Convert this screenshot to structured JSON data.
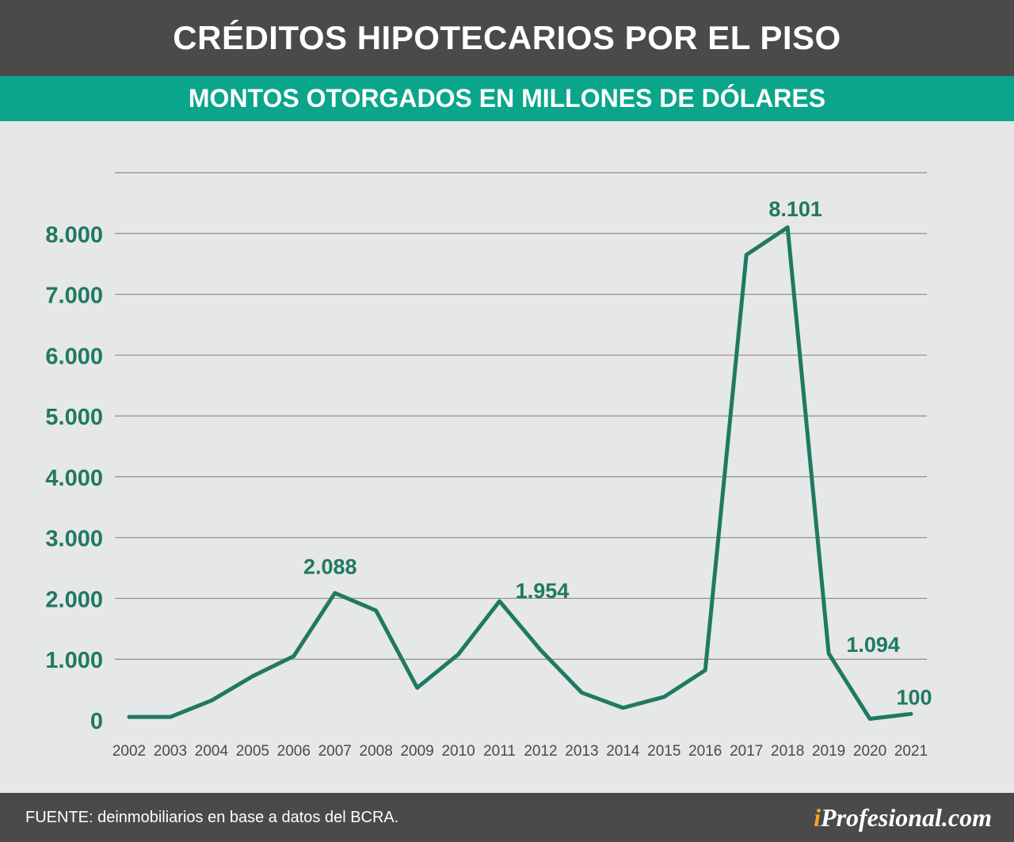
{
  "header": {
    "title": "CRÉDITOS HIPOTECARIOS POR EL PISO",
    "subtitle": "MONTOS OTORGADOS EN MILLONES DE DÓLARES"
  },
  "footer": {
    "source": "FUENTE: deinmobiliarios en base a datos del BCRA.",
    "brand_i": "i",
    "brand_rest": "Profesional.com"
  },
  "colors": {
    "line": "#1f7a5f",
    "axis_text": "#1f7a5f",
    "grid": "#8c8c8c",
    "header_bg": "#4a4a4a",
    "subheader_bg": "#0aa58a"
  },
  "chart_data": {
    "type": "line",
    "title": "CRÉDITOS HIPOTECARIOS POR EL PISO",
    "subtitle": "MONTOS OTORGADOS EN MILLONES DE DÓLARES",
    "xlabel": "",
    "ylabel": "",
    "ylim": [
      0,
      9000
    ],
    "yticks": [
      0,
      1000,
      2000,
      3000,
      4000,
      5000,
      6000,
      7000,
      8000
    ],
    "ytick_labels": [
      "0",
      "1.000",
      "2.000",
      "3.000",
      "4.000",
      "5.000",
      "6.000",
      "7.000",
      "8.000"
    ],
    "grid": true,
    "categories": [
      "2002",
      "2003",
      "2004",
      "2005",
      "2006",
      "2007",
      "2008",
      "2009",
      "2010",
      "2011",
      "2012",
      "2013",
      "2014",
      "2015",
      "2016",
      "2017",
      "2018",
      "2019",
      "2020",
      "2021"
    ],
    "values": [
      50,
      50,
      320,
      720,
      1050,
      2088,
      1800,
      530,
      1080,
      1954,
      1150,
      450,
      200,
      380,
      820,
      7650,
      8101,
      1094,
      20,
      100
    ],
    "annotations": [
      {
        "category": "2007",
        "label": "2.088"
      },
      {
        "category": "2011",
        "label": "1.954"
      },
      {
        "category": "2018",
        "label": "8.101"
      },
      {
        "category": "2019",
        "label": "1.094"
      },
      {
        "category": "2021",
        "label": "100"
      }
    ]
  }
}
